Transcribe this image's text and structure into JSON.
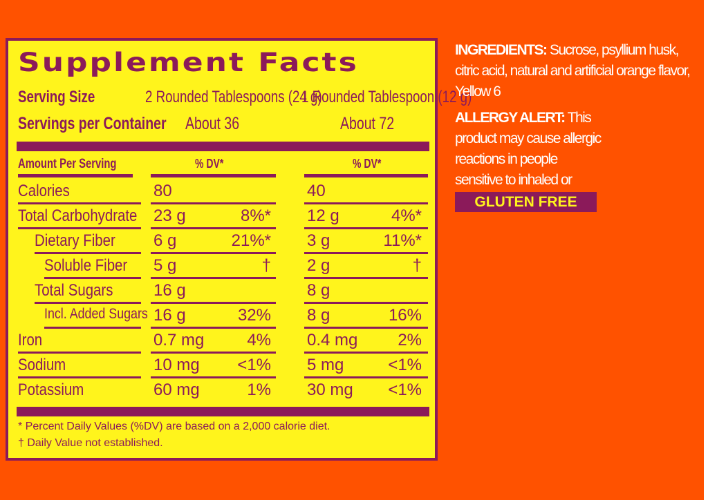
{
  "colors": {
    "background": "#ff5200",
    "label": "#fff41c",
    "accent": "#8b1a5a",
    "text_right": "#ffffff"
  },
  "label": {
    "title": "Supplement Facts",
    "serving_size_label": "Serving Size",
    "serving_size_1": "2 Rounded Tablespoons (24 g)",
    "serving_size_2": "1 Rounded Tablespoon (12 g)",
    "servings_label": "Servings per Container",
    "servings_1": "About 36",
    "servings_2": "About 72",
    "amount_header": "Amount Per Serving",
    "dv_header_1": "% DV*",
    "dv_header_2": "% DV*",
    "rows": [
      {
        "name": "Calories",
        "v1": "80",
        "p1": "",
        "v2": "40",
        "p2": ""
      },
      {
        "name": "Total Carbohydrate",
        "v1": "23 g",
        "p1": "8%*",
        "v2": "12 g",
        "p2": "4%*"
      },
      {
        "name": "Dietary Fiber",
        "v1": "6 g",
        "p1": "21%*",
        "v2": "3 g",
        "p2": "11%*"
      },
      {
        "name": "Soluble Fiber",
        "v1": "5 g",
        "p1": "†",
        "v2": "2 g",
        "p2": "†"
      },
      {
        "name": "Total Sugars",
        "v1": "16 g",
        "p1": "",
        "v2": "8 g",
        "p2": ""
      },
      {
        "name": "Incl. Added Sugars",
        "v1": "16 g",
        "p1": "32%",
        "v2": "8 g",
        "p2": "16%"
      },
      {
        "name": "Iron",
        "v1": "0.7 mg",
        "p1": "4%",
        "v2": "0.4 mg",
        "p2": "2%"
      },
      {
        "name": "Sodium",
        "v1": "10 mg",
        "p1": "<1%",
        "v2": "5 mg",
        "p2": "<1%"
      },
      {
        "name": "Potassium",
        "v1": "60 mg",
        "p1": "1%",
        "v2": "30 mg",
        "p2": "<1%"
      }
    ],
    "footnote_1": "* Percent Daily Values (%DV) are based on a 2,000 calorie diet.",
    "footnote_2": "† Daily Value not established."
  },
  "side": {
    "ingredients_label": "INGREDIENTS:",
    "ingredients_text": " Sucrose, psyllium husk, citric acid, natural and artificial orange flavor, Yellow 6",
    "allergy_label": "ALLERGY ALERT:",
    "allergy_text": " This product may cause allergic reactions in people sensitive to inhaled or ingested psyllium.",
    "badge": "GLUTEN FREE"
  }
}
